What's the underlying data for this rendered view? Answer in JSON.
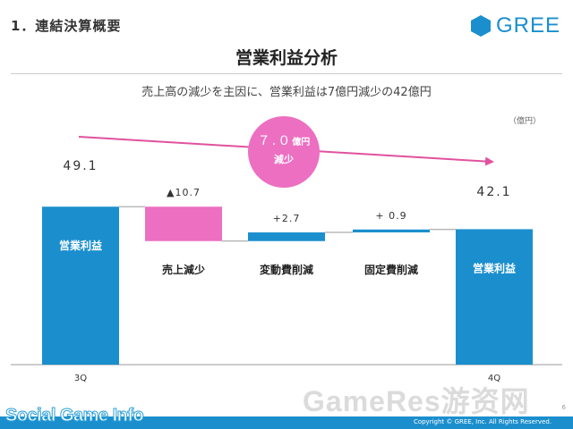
{
  "header": {
    "section_title": "1．連結決算概要",
    "logo_text": "GREE"
  },
  "main_title": "営業利益分析",
  "subtitle": "売上高の減少を主因に、営業利益は7億円減少の42億円",
  "unit_label": "（億円）",
  "bubble": {
    "amount": "７.０",
    "unit": "億円",
    "label": "減少"
  },
  "colors": {
    "accent_blue": "#1b8fce",
    "pink": "#ec6fc1",
    "arrow_pink": "#e0529e"
  },
  "chart_data": {
    "type": "bar",
    "subtype": "waterfall",
    "unit": "億円",
    "categories": [
      "営業利益",
      "売上減少",
      "変動費削減",
      "固定費削減",
      "営業利益"
    ],
    "x_labels": [
      "3Q",
      "",
      "",
      "",
      "4Q"
    ],
    "steps": [
      {
        "label": "営業利益",
        "kind": "total",
        "start": 0,
        "end": 49.1,
        "value": 49.1,
        "value_label": "49.1",
        "color": "#1b8fce"
      },
      {
        "label": "売上減少",
        "kind": "delta",
        "start": 49.1,
        "end": 38.4,
        "value": -10.7,
        "value_label": "▲10.7",
        "color": "#ec6fc1"
      },
      {
        "label": "変動費削減",
        "kind": "delta",
        "start": 38.4,
        "end": 41.1,
        "value": 2.7,
        "value_label": "+2.7",
        "color": "#1b8fce"
      },
      {
        "label": "固定費削減",
        "kind": "delta",
        "start": 41.1,
        "end": 42.0,
        "value": 0.9,
        "value_label": "+ 0.9",
        "color": "#1b8fce"
      },
      {
        "label": "営業利益",
        "kind": "total",
        "start": 0,
        "end": 42.1,
        "value": 42.1,
        "value_label": "42.1",
        "color": "#1b8fce"
      }
    ],
    "ylim": [
      0,
      60
    ],
    "grid": false
  },
  "watermarks": {
    "left": "Social Game Info",
    "right": "GameRes游资网"
  },
  "footer": {
    "copyright": "Copyright © GREE, Inc. All Rights Reserved.",
    "page": "6"
  }
}
